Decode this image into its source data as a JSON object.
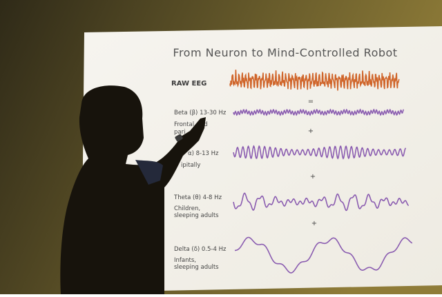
{
  "slide": {
    "title": "From Neuron to Mind-Controlled Robot",
    "raw_label": "RAW EEG",
    "equals": "=",
    "bands": [
      {
        "name": "Beta (β)  13-30 Hz",
        "note_lines": [
          "Frontal",
          "nd",
          "pari"
        ]
      },
      {
        "name": "α)  8-13 Hz",
        "note_lines": [
          "ipitally"
        ]
      },
      {
        "name": "Theta (θ)   4-8 Hz",
        "note_lines": [
          "Children,",
          "sleeping adults"
        ]
      },
      {
        "name": "Delta (δ)  0.5-4 Hz",
        "note_lines": [
          "Infants,",
          "sleeping adults"
        ]
      }
    ],
    "plus": [
      "+",
      "+",
      "+"
    ]
  }
}
